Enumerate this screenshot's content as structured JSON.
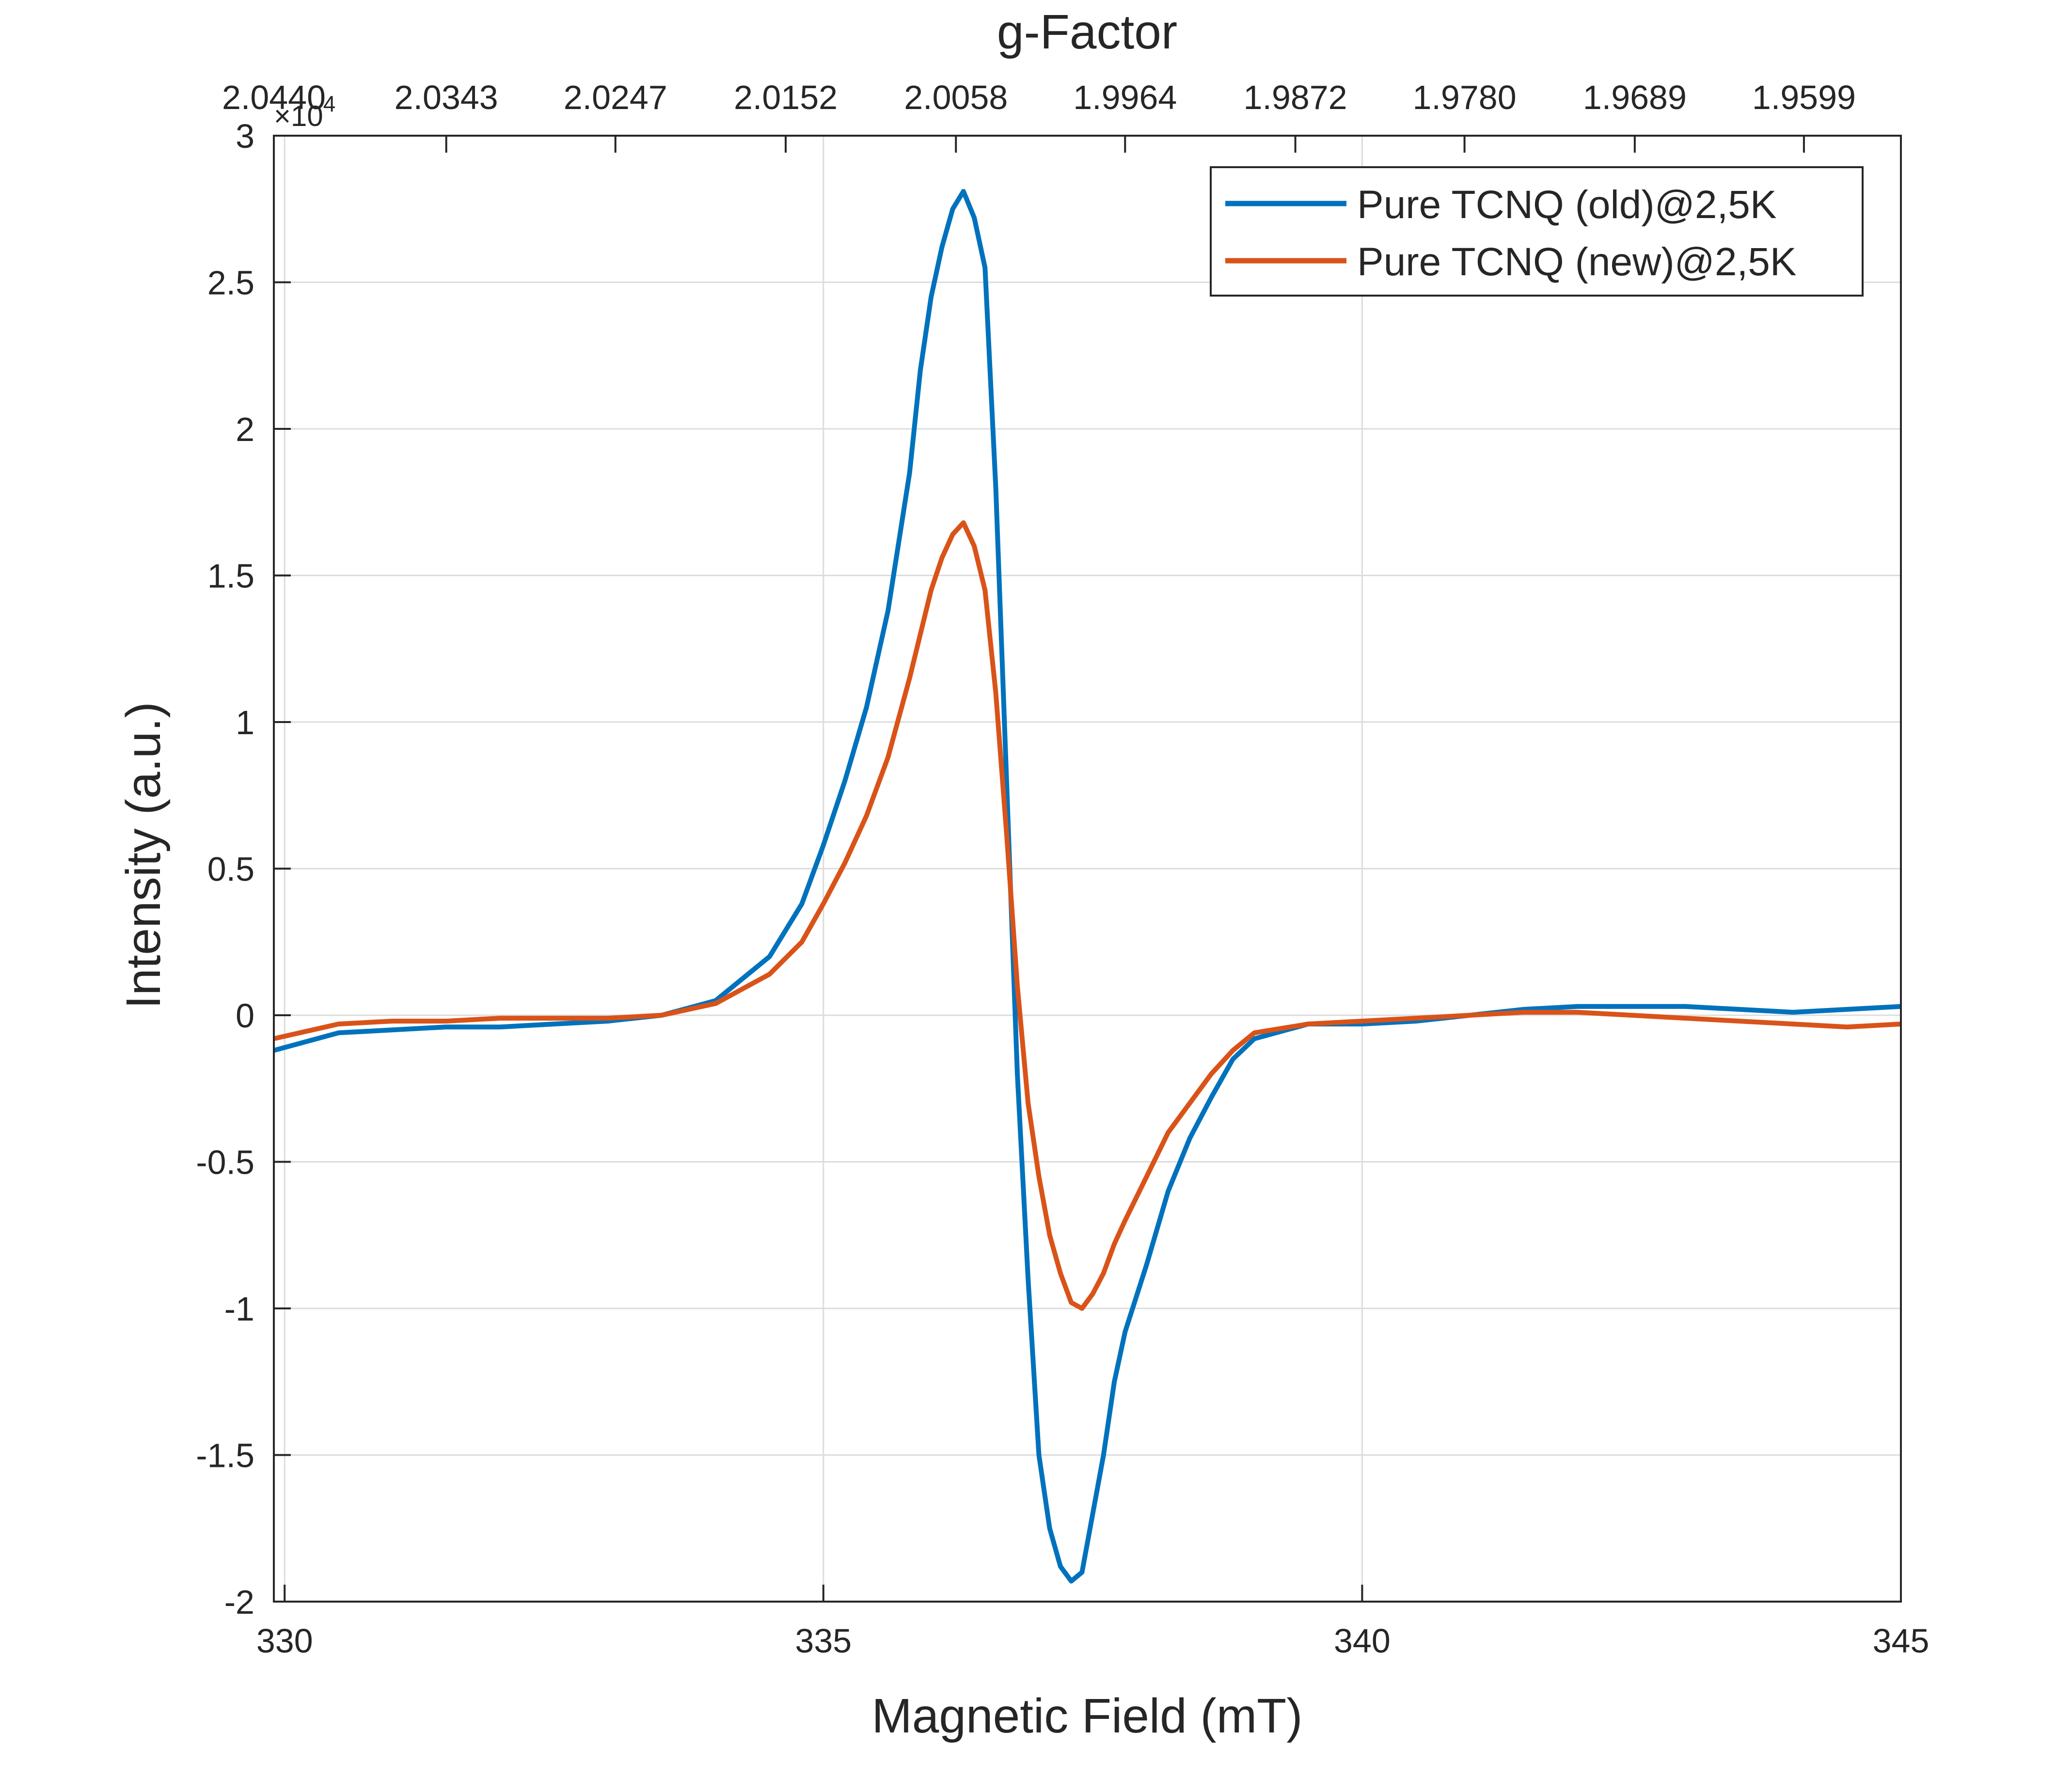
{
  "chart_data": {
    "type": "line",
    "title": "g-Factor",
    "xlabel": "Magnetic Field (mT)",
    "ylabel": "Intensity (a.u.)",
    "xlim": [
      329.9,
      345
    ],
    "ylim": [
      -2,
      3
    ],
    "y_exponent_label": "×10",
    "y_exponent_power": "4",
    "x_ticks": [
      330,
      335,
      340,
      345
    ],
    "x_tick_labels": [
      "330",
      "335",
      "340",
      "345"
    ],
    "y_ticks": [
      -2,
      -1.5,
      -1,
      -0.5,
      0,
      0.5,
      1,
      1.5,
      2,
      2.5,
      3
    ],
    "y_tick_labels": [
      "-2",
      "-1.5",
      "-1",
      "-0.5",
      "0",
      "0.5",
      "1",
      "1.5",
      "2",
      "2.5",
      "3"
    ],
    "top_ticks": [
      329.9,
      331.5,
      333.07,
      334.65,
      336.23,
      337.8,
      339.38,
      340.95,
      342.53,
      344.1
    ],
    "top_tick_labels": [
      "2.0440",
      "2.0343",
      "2.0247",
      "2.0152",
      "2.0058",
      "1.9964",
      "1.9872",
      "1.9780",
      "1.9689",
      "1.9599"
    ],
    "grid": true,
    "legend_position": "top-right",
    "series": [
      {
        "name": "Pure TCNQ (old)@2,5K",
        "color": "#0072BD",
        "points": [
          [
            329.9,
            -0.12
          ],
          [
            330.5,
            -0.06
          ],
          [
            331.0,
            -0.05
          ],
          [
            331.5,
            -0.04
          ],
          [
            332.0,
            -0.04
          ],
          [
            332.5,
            -0.03
          ],
          [
            333.0,
            -0.02
          ],
          [
            333.5,
            0.0
          ],
          [
            334.0,
            0.05
          ],
          [
            334.5,
            0.2
          ],
          [
            334.8,
            0.38
          ],
          [
            335.0,
            0.58
          ],
          [
            335.2,
            0.8
          ],
          [
            335.4,
            1.05
          ],
          [
            335.6,
            1.38
          ],
          [
            335.8,
            1.85
          ],
          [
            335.9,
            2.2
          ],
          [
            336.0,
            2.45
          ],
          [
            336.1,
            2.62
          ],
          [
            336.2,
            2.75
          ],
          [
            336.3,
            2.81
          ],
          [
            336.4,
            2.72
          ],
          [
            336.5,
            2.55
          ],
          [
            336.6,
            1.8
          ],
          [
            336.7,
            0.8
          ],
          [
            336.8,
            -0.2
          ],
          [
            336.9,
            -0.9
          ],
          [
            337.0,
            -1.5
          ],
          [
            337.1,
            -1.75
          ],
          [
            337.2,
            -1.88
          ],
          [
            337.3,
            -1.93
          ],
          [
            337.4,
            -1.9
          ],
          [
            337.5,
            -1.7
          ],
          [
            337.6,
            -1.5
          ],
          [
            337.7,
            -1.25
          ],
          [
            337.8,
            -1.08
          ],
          [
            338.0,
            -0.85
          ],
          [
            338.2,
            -0.6
          ],
          [
            338.4,
            -0.42
          ],
          [
            338.6,
            -0.28
          ],
          [
            338.8,
            -0.15
          ],
          [
            339.0,
            -0.08
          ],
          [
            339.5,
            -0.03
          ],
          [
            340.0,
            -0.03
          ],
          [
            340.5,
            -0.02
          ],
          [
            341.0,
            0.0
          ],
          [
            341.5,
            0.02
          ],
          [
            342.0,
            0.03
          ],
          [
            342.5,
            0.03
          ],
          [
            343.0,
            0.03
          ],
          [
            343.5,
            0.02
          ],
          [
            344.0,
            0.01
          ],
          [
            344.5,
            0.02
          ],
          [
            345.0,
            0.03
          ]
        ]
      },
      {
        "name": "Pure TCNQ (new)@2,5K",
        "color": "#D95319",
        "points": [
          [
            329.9,
            -0.08
          ],
          [
            330.5,
            -0.03
          ],
          [
            331.0,
            -0.02
          ],
          [
            331.5,
            -0.02
          ],
          [
            332.0,
            -0.01
          ],
          [
            332.5,
            -0.01
          ],
          [
            333.0,
            -0.01
          ],
          [
            333.5,
            0.0
          ],
          [
            334.0,
            0.04
          ],
          [
            334.5,
            0.14
          ],
          [
            334.8,
            0.25
          ],
          [
            335.0,
            0.38
          ],
          [
            335.2,
            0.52
          ],
          [
            335.4,
            0.68
          ],
          [
            335.6,
            0.88
          ],
          [
            335.8,
            1.15
          ],
          [
            335.9,
            1.3
          ],
          [
            336.0,
            1.45
          ],
          [
            336.1,
            1.56
          ],
          [
            336.2,
            1.64
          ],
          [
            336.3,
            1.68
          ],
          [
            336.4,
            1.6
          ],
          [
            336.5,
            1.45
          ],
          [
            336.6,
            1.1
          ],
          [
            336.7,
            0.62
          ],
          [
            336.8,
            0.1
          ],
          [
            336.9,
            -0.3
          ],
          [
            337.0,
            -0.55
          ],
          [
            337.1,
            -0.75
          ],
          [
            337.2,
            -0.88
          ],
          [
            337.3,
            -0.98
          ],
          [
            337.4,
            -1.0
          ],
          [
            337.5,
            -0.95
          ],
          [
            337.6,
            -0.88
          ],
          [
            337.7,
            -0.78
          ],
          [
            337.8,
            -0.7
          ],
          [
            338.0,
            -0.55
          ],
          [
            338.2,
            -0.4
          ],
          [
            338.4,
            -0.3
          ],
          [
            338.6,
            -0.2
          ],
          [
            338.8,
            -0.12
          ],
          [
            339.0,
            -0.06
          ],
          [
            339.5,
            -0.03
          ],
          [
            340.0,
            -0.02
          ],
          [
            340.5,
            -0.01
          ],
          [
            341.0,
            0.0
          ],
          [
            341.5,
            0.01
          ],
          [
            342.0,
            0.01
          ],
          [
            342.5,
            0.0
          ],
          [
            343.0,
            -0.01
          ],
          [
            343.5,
            -0.02
          ],
          [
            344.0,
            -0.03
          ],
          [
            344.5,
            -0.04
          ],
          [
            345.0,
            -0.03
          ]
        ]
      }
    ]
  }
}
